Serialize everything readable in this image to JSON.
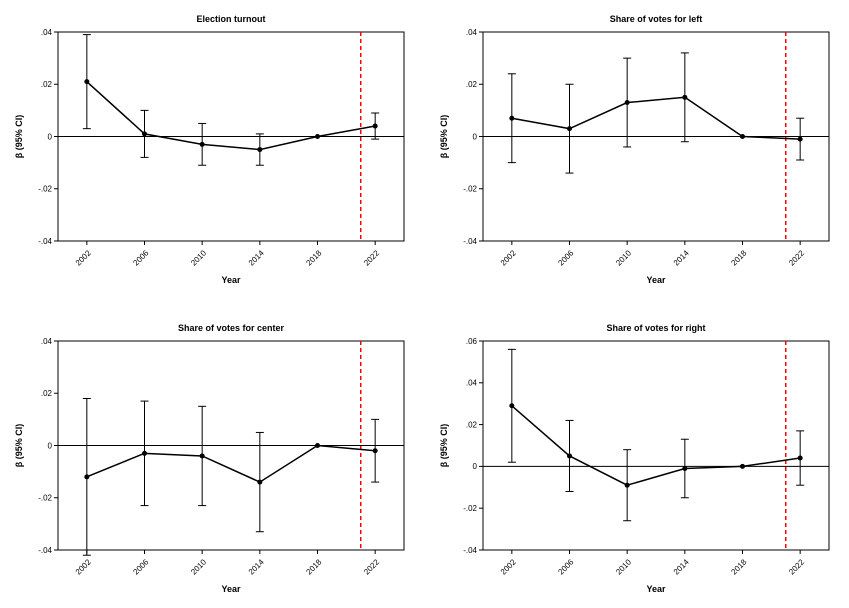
{
  "global": {
    "bg": "#ffffff",
    "axis_color": "#000000",
    "line_color": "#000000",
    "marker_color": "#000000",
    "refline_color": "#ff0000",
    "refline_dash": "4,3",
    "refline_x": 2021,
    "xlabel": "Year",
    "ylabel": "β (95% CI)",
    "title_fontsize": 9,
    "label_fontsize": 9,
    "tick_fontsize": 8,
    "x_ticks": [
      2002,
      2006,
      2010,
      2014,
      2018,
      2022
    ],
    "marker_radius": 2.5,
    "line_width": 1.5,
    "cap_width": 4
  },
  "panels": [
    {
      "title": "Election turnout",
      "ylim": [
        -0.04,
        0.04
      ],
      "yticks": [
        -0.04,
        -0.02,
        0,
        0.02,
        0.04
      ],
      "ytick_labels": [
        "-.04",
        "-.02",
        "0",
        ".02",
        ".04"
      ],
      "series": [
        {
          "x": 2002,
          "y": 0.021,
          "lo": 0.003,
          "hi": 0.039
        },
        {
          "x": 2006,
          "y": 0.001,
          "lo": -0.008,
          "hi": 0.01
        },
        {
          "x": 2010,
          "y": -0.003,
          "lo": -0.011,
          "hi": 0.005
        },
        {
          "x": 2014,
          "y": -0.005,
          "lo": -0.011,
          "hi": 0.001
        },
        {
          "x": 2018,
          "y": 0.0,
          "lo": 0.0,
          "hi": 0.0
        },
        {
          "x": 2022,
          "y": 0.004,
          "lo": -0.001,
          "hi": 0.009
        }
      ]
    },
    {
      "title": "Share of votes for left",
      "ylim": [
        -0.04,
        0.04
      ],
      "yticks": [
        -0.04,
        -0.02,
        0,
        0.02,
        0.04
      ],
      "ytick_labels": [
        "-.04",
        "-.02",
        "0",
        ".02",
        ".04"
      ],
      "series": [
        {
          "x": 2002,
          "y": 0.007,
          "lo": -0.01,
          "hi": 0.024
        },
        {
          "x": 2006,
          "y": 0.003,
          "lo": -0.014,
          "hi": 0.02
        },
        {
          "x": 2010,
          "y": 0.013,
          "lo": -0.004,
          "hi": 0.03
        },
        {
          "x": 2014,
          "y": 0.015,
          "lo": -0.002,
          "hi": 0.032
        },
        {
          "x": 2018,
          "y": 0.0,
          "lo": 0.0,
          "hi": 0.0
        },
        {
          "x": 2022,
          "y": -0.001,
          "lo": -0.009,
          "hi": 0.007
        }
      ]
    },
    {
      "title": "Share of votes for center",
      "ylim": [
        -0.04,
        0.04
      ],
      "yticks": [
        -0.04,
        -0.02,
        0,
        0.02,
        0.04
      ],
      "ytick_labels": [
        "-.04",
        "-.02",
        "0",
        ".02",
        ".04"
      ],
      "series": [
        {
          "x": 2002,
          "y": -0.012,
          "lo": -0.042,
          "hi": 0.018
        },
        {
          "x": 2006,
          "y": -0.003,
          "lo": -0.023,
          "hi": 0.017
        },
        {
          "x": 2010,
          "y": -0.004,
          "lo": -0.023,
          "hi": 0.015
        },
        {
          "x": 2014,
          "y": -0.014,
          "lo": -0.033,
          "hi": 0.005
        },
        {
          "x": 2018,
          "y": 0.0,
          "lo": 0.0,
          "hi": 0.0
        },
        {
          "x": 2022,
          "y": -0.002,
          "lo": -0.014,
          "hi": 0.01
        }
      ]
    },
    {
      "title": "Share of votes for right",
      "ylim": [
        -0.04,
        0.06
      ],
      "yticks": [
        -0.04,
        -0.02,
        0,
        0.02,
        0.04,
        0.06
      ],
      "ytick_labels": [
        "-.04",
        "-.02",
        "0",
        ".02",
        ".04",
        ".06"
      ],
      "series": [
        {
          "x": 2002,
          "y": 0.029,
          "lo": 0.002,
          "hi": 0.056
        },
        {
          "x": 2006,
          "y": 0.005,
          "lo": -0.012,
          "hi": 0.022
        },
        {
          "x": 2010,
          "y": -0.009,
          "lo": -0.026,
          "hi": 0.008
        },
        {
          "x": 2014,
          "y": -0.001,
          "lo": -0.015,
          "hi": 0.013
        },
        {
          "x": 2018,
          "y": 0.0,
          "lo": 0.0,
          "hi": 0.0
        },
        {
          "x": 2022,
          "y": 0.004,
          "lo": -0.009,
          "hi": 0.017
        }
      ]
    }
  ]
}
